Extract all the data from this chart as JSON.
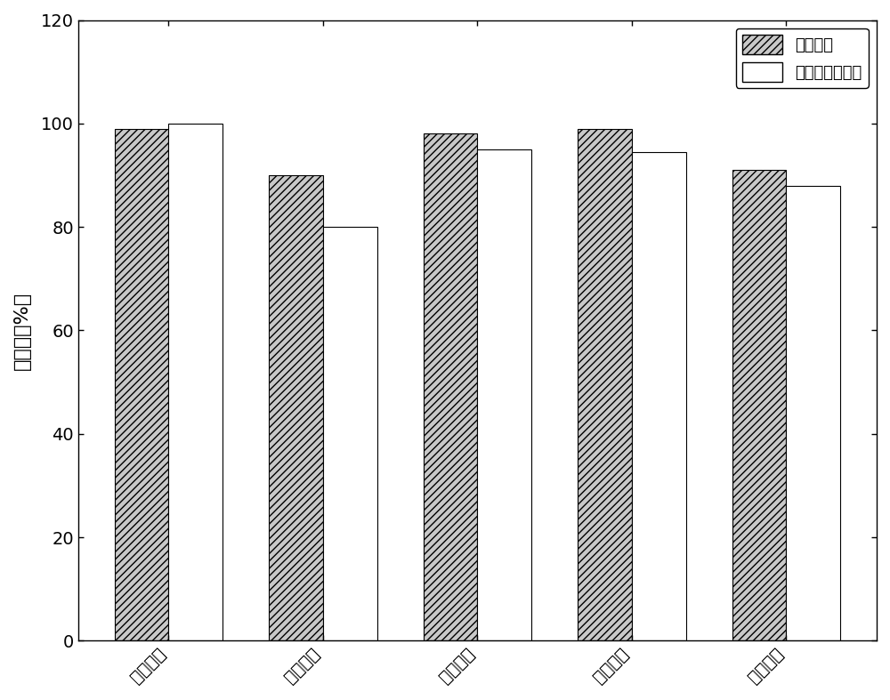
{
  "categories": [
    "实施例一",
    "实施例二",
    "实施例三",
    "实施例四",
    "实施例五"
  ],
  "series1_label": "大肠杆菌",
  "series2_label": "金黄色葡萄球菌",
  "series1_values": [
    99,
    90,
    98,
    99,
    91
  ],
  "series2_values": [
    100,
    80,
    95,
    94.5,
    88
  ],
  "ylabel": "抗菌率（%）",
  "ylim": [
    0,
    120
  ],
  "yticks": [
    0,
    20,
    40,
    60,
    80,
    100,
    120
  ],
  "bar_width": 0.35,
  "hatch_pattern": "////",
  "background_color": "#ffffff",
  "bar_edge_color": "#000000",
  "facecolor_hatch": "#c8c8c8",
  "facecolor_plain": "#ffffff",
  "tick_fontsize": 14,
  "label_fontsize": 16,
  "legend_fontsize": 13
}
